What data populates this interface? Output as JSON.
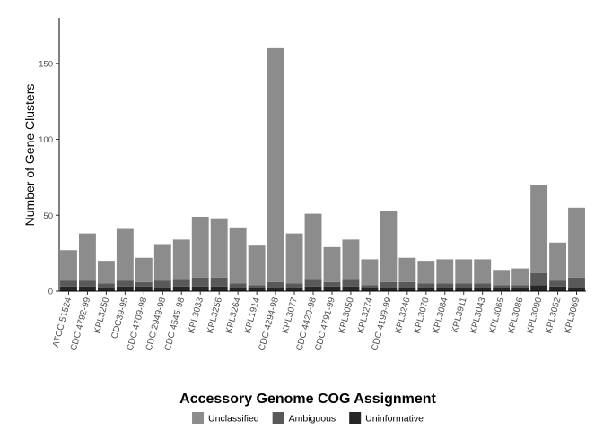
{
  "chart_data": {
    "type": "bar",
    "stacked": true,
    "ylabel": "Number of Gene Clusters",
    "ylim": [
      0,
      180
    ],
    "yticks": [
      0,
      50,
      100,
      150
    ],
    "grid": false,
    "legend_title": "Accessory Genome COG Assignment",
    "legend_position": "bottom",
    "categories": [
      "ATCC 51524",
      "CDC 4792-99",
      "KPL3250",
      "CDC39-95",
      "CDC 4709-98",
      "CDC 2949-98",
      "CDC 4545-98",
      "KPL3033",
      "KPL3256",
      "KPL3264",
      "KPL1914",
      "CDC 4294-98",
      "KPL3077",
      "CDC 4420-98",
      "CDC 4791-99",
      "KPL3050",
      "KPL3274",
      "CDC 4199-99",
      "KPL3246",
      "KPL3070",
      "KPL3084",
      "KPL3911",
      "KPL3043",
      "KPL3065",
      "KPL3086",
      "KPL3090",
      "KPL3052",
      "KPL3069"
    ],
    "series": [
      {
        "name": "Uninformative",
        "color": "#262626",
        "values": [
          3,
          3,
          2,
          3,
          3,
          2,
          3,
          3,
          3,
          2,
          2,
          2,
          2,
          3,
          3,
          3,
          2,
          2,
          2,
          2,
          2,
          2,
          2,
          2,
          2,
          4,
          3,
          2
        ]
      },
      {
        "name": "Ambiguous",
        "color": "#595959",
        "values": [
          4,
          4,
          3,
          4,
          3,
          5,
          5,
          6,
          6,
          3,
          2,
          4,
          3,
          5,
          3,
          5,
          2,
          4,
          4,
          3,
          3,
          3,
          3,
          2,
          2,
          8,
          4,
          7
        ]
      },
      {
        "name": "Unclassified",
        "color": "#8c8c8c",
        "values": [
          20,
          31,
          15,
          34,
          16,
          24,
          26,
          40,
          39,
          37,
          26,
          154,
          33,
          43,
          23,
          26,
          17,
          47,
          16,
          15,
          16,
          16,
          16,
          10,
          11,
          58,
          25,
          46
        ]
      }
    ],
    "legend_order": [
      "Unclassified",
      "Ambiguous",
      "Uninformative"
    ]
  }
}
